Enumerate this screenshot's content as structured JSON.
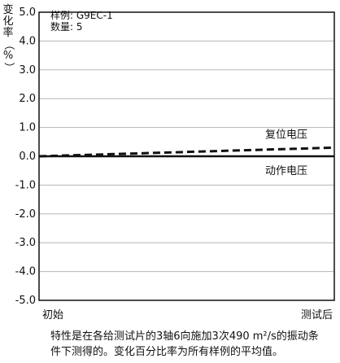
{
  "chart_data": {
    "type": "line",
    "ylabel": "变化率（%）",
    "ylim": [
      -5.0,
      5.0
    ],
    "y_ticks": [
      "5.0",
      "4.0",
      "3.0",
      "2.0",
      "1.0",
      "0.0",
      "-1.0",
      "-2.0",
      "-3.0",
      "-4.0",
      "-5.0"
    ],
    "y_tick_values": [
      5,
      4,
      3,
      2,
      1,
      0,
      -1,
      -2,
      -3,
      -4,
      -5
    ],
    "categories": [
      "初始",
      "测试后"
    ],
    "series": [
      {
        "name": "复位电压",
        "values": [
          0.0,
          0.3
        ],
        "style": "dashed",
        "color": "#111111"
      },
      {
        "name": "动作电压",
        "values": [
          0.0,
          0.0
        ],
        "style": "solid",
        "color": "#111111"
      }
    ],
    "grid": true,
    "annotations": [
      "样例: G9EC-1",
      "数量: 5"
    ]
  },
  "legend": {
    "sample": "样例: G9EC-1",
    "count": "数量: 5"
  },
  "ylabel_parts": [
    "变",
    "化",
    "率",
    "（",
    "%",
    "）"
  ],
  "footnote": {
    "line1": "特性是在各给测试片的3轴6向施加3次490 m²/s的振动条",
    "line2": "件下测得的。变化百分比率为所有样例的平均值。"
  }
}
